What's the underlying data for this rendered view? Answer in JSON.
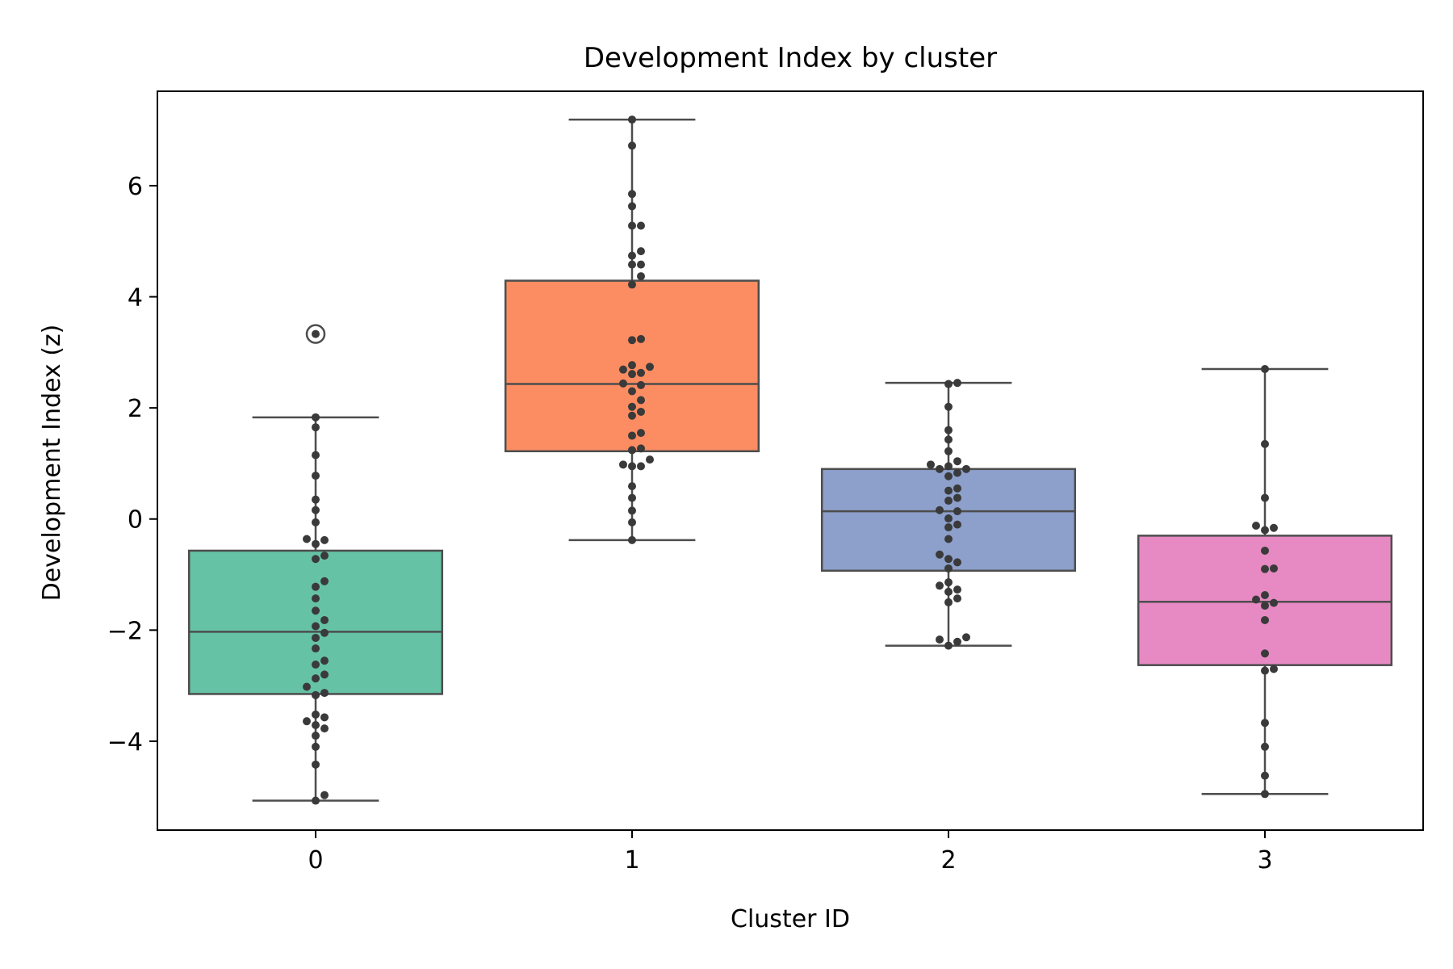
{
  "chart_data": {
    "type": "box",
    "title": "Development Index by cluster",
    "xlabel": "Cluster ID",
    "ylabel": "Development Index (z)",
    "ylim": [
      -5.6,
      7.7
    ],
    "yticks": [
      -4,
      -2,
      0,
      2,
      4,
      6
    ],
    "grid": false,
    "categories": [
      "0",
      "1",
      "2",
      "3"
    ],
    "colors": [
      "#66c2a5",
      "#fc8d62",
      "#8da0cb",
      "#e78ac3"
    ],
    "boxes": [
      {
        "category": "0",
        "whisker_low": -5.07,
        "q1": -3.15,
        "median": -2.03,
        "q3": -0.57,
        "whisker_high": 1.83,
        "outliers": [
          3.33
        ]
      },
      {
        "category": "1",
        "whisker_low": -0.38,
        "q1": 1.22,
        "median": 2.43,
        "q3": 4.29,
        "whisker_high": 7.19,
        "outliers": []
      },
      {
        "category": "2",
        "whisker_low": -2.28,
        "q1": -0.93,
        "median": 0.14,
        "q3": 0.9,
        "whisker_high": 2.45,
        "outliers": []
      },
      {
        "category": "3",
        "whisker_low": -4.95,
        "q1": -2.63,
        "median": -1.49,
        "q3": -0.3,
        "whisker_high": 2.7,
        "outliers": []
      }
    ],
    "points": [
      [
        1.83,
        1.65,
        1.15,
        0.78,
        0.35,
        0.16,
        -0.06,
        -0.36,
        -0.38,
        -0.45,
        -0.66,
        -0.72,
        -1.12,
        -1.22,
        -1.43,
        -1.65,
        -1.82,
        -1.93,
        -2.05,
        -2.14,
        -2.33,
        -2.55,
        -2.62,
        -2.8,
        -2.87,
        -3.02,
        -3.13,
        -3.17,
        -3.52,
        -3.57,
        -3.64,
        -3.71,
        -3.77,
        -3.9,
        -4.1,
        -4.42,
        -4.97,
        -5.07,
        3.33
      ],
      [
        7.19,
        6.72,
        5.85,
        5.63,
        5.28,
        5.28,
        4.82,
        4.74,
        4.58,
        4.58,
        4.37,
        4.22,
        3.24,
        3.22,
        2.77,
        2.74,
        2.69,
        2.63,
        2.61,
        2.44,
        2.41,
        2.3,
        2.14,
        2.02,
        1.93,
        1.86,
        1.55,
        1.5,
        1.27,
        1.24,
        1.07,
        0.98,
        0.95,
        0.95,
        0.59,
        0.38,
        0.15,
        -0.06,
        -0.38
      ],
      [
        2.45,
        2.43,
        2.02,
        1.6,
        1.43,
        1.22,
        1.04,
        0.98,
        0.95,
        0.9,
        0.9,
        0.83,
        0.77,
        0.55,
        0.51,
        0.38,
        0.33,
        0.16,
        0.14,
        0.01,
        -0.1,
        -0.15,
        -0.36,
        -0.64,
        -0.72,
        -0.78,
        -0.89,
        -1.14,
        -1.2,
        -1.27,
        -1.31,
        -1.43,
        -1.5,
        -2.13,
        -2.17,
        -2.21,
        -2.28
      ],
      [
        2.7,
        1.35,
        0.38,
        -0.12,
        -0.16,
        -0.2,
        -0.57,
        -0.89,
        -0.9,
        -1.37,
        -1.45,
        -1.51,
        -1.56,
        -1.82,
        -2.42,
        -2.7,
        -2.73,
        -3.67,
        -4.1,
        -4.62,
        -4.95
      ]
    ]
  }
}
